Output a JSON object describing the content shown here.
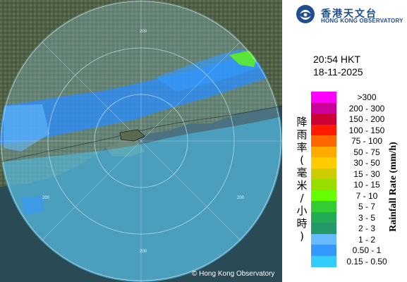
{
  "logo": {
    "name_chinese": "香港天文台",
    "name_english": "HONG KONG OBSERVATORY"
  },
  "time": "20:54 HKT",
  "date": "18-11-2025",
  "legend": {
    "title_english": "Rainfall Rate (mm/h)",
    "title_chinese": "降雨率(毫米/小時)",
    "bins": [
      {
        "label": ">300",
        "color": "#ff00ff"
      },
      {
        "label": "200 - 300",
        "color": "#cc0099"
      },
      {
        "label": "150 - 200",
        "color": "#cc0033"
      },
      {
        "label": "100 - 150",
        "color": "#ff1a00"
      },
      {
        "label": "75 - 100",
        "color": "#ff6600"
      },
      {
        "label": "50 - 75",
        "color": "#ffaa00"
      },
      {
        "label": "30 - 50",
        "color": "#ffcc00"
      },
      {
        "label": "15 - 30",
        "color": "#cccc00"
      },
      {
        "label": "10 - 15",
        "color": "#99dd00"
      },
      {
        "label": "7 - 10",
        "color": "#66ff00"
      },
      {
        "label": "5 - 7",
        "color": "#33cc33"
      },
      {
        "label": "3 - 5",
        "color": "#22aa55"
      },
      {
        "label": "2 - 3",
        "color": "#229966"
      },
      {
        "label": "1 - 2",
        "color": "#66bbff"
      },
      {
        "label": "0.50 - 1",
        "color": "#3399ff"
      },
      {
        "label": "0.15 - 0.50",
        "color": "#33ccff"
      }
    ]
  },
  "map": {
    "range_ring_label": "200",
    "copyright": "© Hong Kong Observatory",
    "colors": {
      "sea": "#2a4a55",
      "land": "#5c6a4e",
      "radar_tint": "#9edcf2"
    }
  }
}
